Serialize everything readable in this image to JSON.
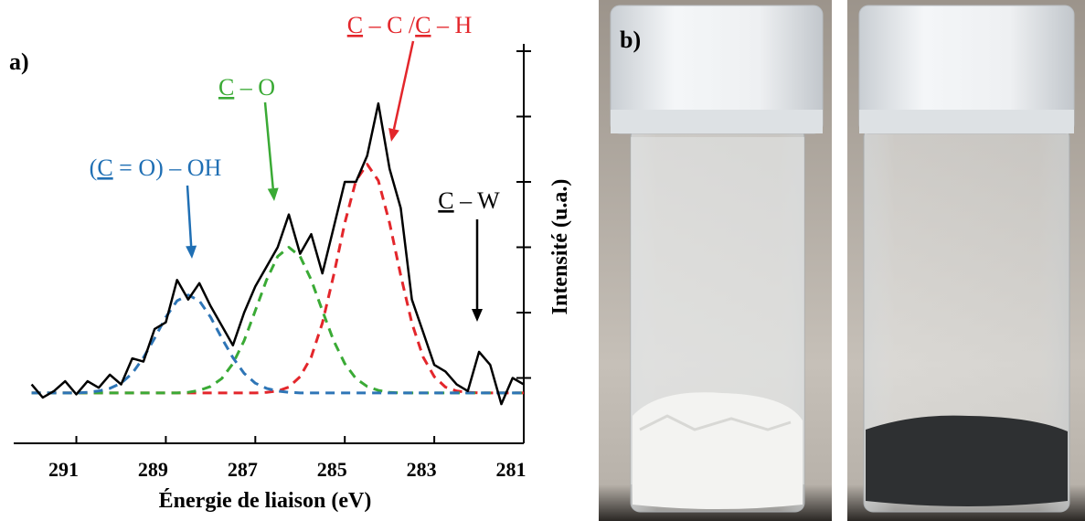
{
  "panel_a": "a)",
  "panel_b": "b)",
  "chart_data": {
    "type": "line",
    "xlabel": "Énergie de liaison (eV)",
    "ylabel": "Intensité (u.a.)",
    "x": [
      292,
      291.75,
      291.5,
      291.25,
      291,
      290.75,
      290.5,
      290.25,
      290,
      289.75,
      289.5,
      289.25,
      289,
      288.75,
      288.5,
      288.25,
      288,
      287.75,
      287.5,
      287.25,
      287,
      286.75,
      286.5,
      286.25,
      286,
      285.75,
      285.5,
      285.25,
      285,
      284.75,
      284.5,
      284.25,
      284,
      283.75,
      283.5,
      283.25,
      283,
      282.75,
      282.5,
      282.25,
      282,
      281.75,
      281.5,
      281.25,
      281
    ],
    "series": [
      {
        "color": "#000000",
        "dashed": false,
        "values": [
          0.9,
          0.7,
          0.8,
          0.95,
          0.75,
          0.95,
          0.85,
          1.05,
          0.9,
          1.3,
          1.25,
          1.75,
          1.85,
          2.5,
          2.2,
          2.45,
          2.1,
          1.8,
          1.5,
          2.0,
          2.4,
          2.7,
          3.0,
          3.5,
          2.9,
          3.2,
          2.6,
          3.3,
          4.0,
          4.0,
          4.4,
          5.2,
          4.2,
          3.6,
          2.2,
          1.7,
          1.2,
          1.1,
          0.9,
          0.8,
          1.4,
          1.2,
          0.6,
          1.0,
          0.9
        ]
      },
      {
        "color": "#2e75b6",
        "dashed": true,
        "values": [
          0.77,
          0.77,
          0.77,
          0.77,
          0.77,
          0.78,
          0.8,
          0.84,
          0.92,
          1.07,
          1.31,
          1.61,
          1.93,
          2.18,
          2.27,
          2.18,
          1.93,
          1.61,
          1.31,
          1.07,
          0.92,
          0.84,
          0.8,
          0.78,
          0.77,
          0.77,
          0.77,
          0.77,
          0.77,
          0.77,
          0.77,
          0.77,
          0.77,
          0.77,
          0.77,
          0.77,
          0.77,
          0.77,
          0.77,
          0.77,
          0.77,
          0.77,
          0.77,
          0.77,
          0.77
        ]
      },
      {
        "color": "#3aaa35",
        "dashed": true,
        "values": [
          0.77,
          0.77,
          0.77,
          0.77,
          0.77,
          0.77,
          0.77,
          0.77,
          0.77,
          0.77,
          0.77,
          0.77,
          0.77,
          0.77,
          0.78,
          0.81,
          0.87,
          0.99,
          1.22,
          1.57,
          2.03,
          2.5,
          2.86,
          3.0,
          2.86,
          2.5,
          2.03,
          1.57,
          1.22,
          0.99,
          0.87,
          0.81,
          0.78,
          0.77,
          0.77,
          0.77,
          0.77,
          0.77,
          0.77,
          0.77,
          0.77,
          0.77,
          0.77,
          0.77,
          0.77
        ]
      },
      {
        "color": "#e3262b",
        "dashed": true,
        "values": [
          0.77,
          0.77,
          0.77,
          0.77,
          0.77,
          0.77,
          0.77,
          0.77,
          0.77,
          0.77,
          0.77,
          0.77,
          0.77,
          0.77,
          0.77,
          0.77,
          0.77,
          0.77,
          0.77,
          0.77,
          0.77,
          0.78,
          0.8,
          0.86,
          1.02,
          1.32,
          1.84,
          2.57,
          3.37,
          4.02,
          4.27,
          4.02,
          3.37,
          2.57,
          1.84,
          1.32,
          1.02,
          0.86,
          0.8,
          0.78,
          0.77,
          0.77,
          0.77,
          0.77,
          0.77
        ]
      }
    ],
    "xlim": [
      292.4,
      281
    ],
    "xticks": [
      291,
      289,
      287,
      285,
      283,
      281
    ],
    "ylim": [
      0,
      6
    ],
    "yticks": [
      1,
      2,
      3,
      4,
      5,
      6
    ],
    "yaxis_side": "right",
    "annotations": [
      {
        "color": "#1f6fb4",
        "parts": [
          "(",
          "C",
          " = O) – OH"
        ]
      },
      {
        "color": "#3aaa35",
        "parts": [
          "C",
          " – O"
        ]
      },
      {
        "color": "#e3262b",
        "parts": [
          "C",
          " – C /",
          "C",
          " – H"
        ]
      },
      {
        "color": "#000000",
        "parts": [
          "C",
          " – W"
        ]
      }
    ]
  }
}
